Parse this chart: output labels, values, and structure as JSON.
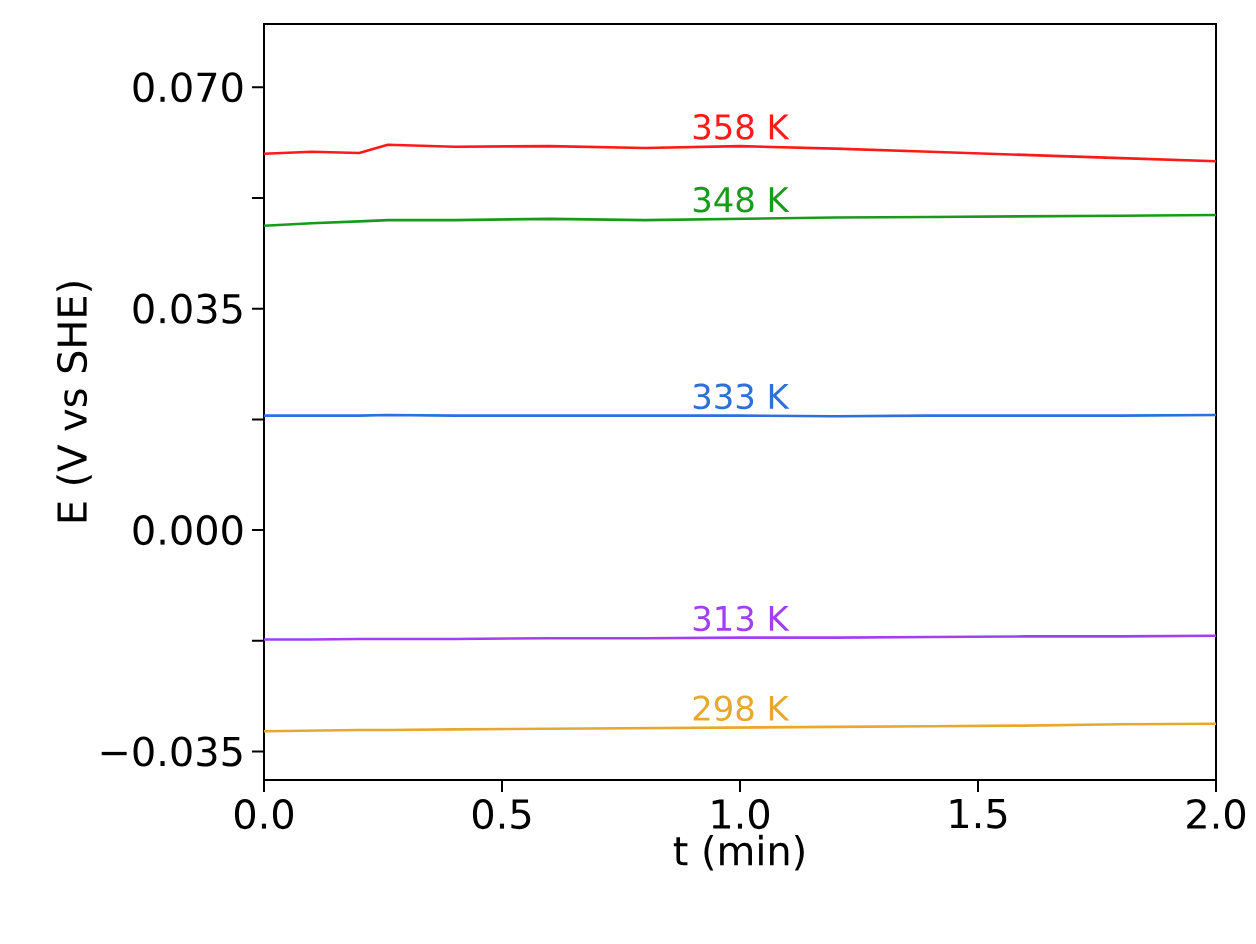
{
  "chart_data": {
    "type": "line",
    "xlabel": "t (min)",
    "ylabel": "E (V vs SHE)",
    "xlim": [
      0,
      2
    ],
    "ylim": [
      -0.0395,
      0.08
    ],
    "xticks": [
      {
        "value": 0,
        "label": "0.0"
      },
      {
        "value": 0.5,
        "label": "0.5"
      },
      {
        "value": 1,
        "label": "1.0"
      },
      {
        "value": 1.5,
        "label": "1.5"
      },
      {
        "value": 2,
        "label": "2.0"
      }
    ],
    "yticks": [
      {
        "value": -0.035,
        "label": "−0.035"
      },
      {
        "value": -0.0175,
        "label": null
      },
      {
        "value": 0,
        "label": "0.000"
      },
      {
        "value": 0.0175,
        "label": null
      },
      {
        "value": 0.035,
        "label": "0.035"
      },
      {
        "value": 0.0525,
        "label": null
      },
      {
        "value": 0.07,
        "label": "0.070"
      }
    ],
    "grid": false,
    "marker": "none",
    "line_style": "solid",
    "x": [
      0,
      0.1,
      0.2,
      0.26,
      0.4,
      0.6,
      0.8,
      1.0,
      1.2,
      1.4,
      1.6,
      1.8,
      2.0
    ],
    "series": [
      {
        "name": "358 K",
        "color": "#ff1a1a",
        "values": [
          0.0595,
          0.0598,
          0.0596,
          0.0609,
          0.0606,
          0.0607,
          0.0604,
          0.0607,
          0.0603,
          0.0598,
          0.0593,
          0.0588,
          0.0583
        ]
      },
      {
        "name": "348 K",
        "color": "#1a9a1a",
        "values": [
          0.0481,
          0.0485,
          0.0488,
          0.049,
          0.049,
          0.0492,
          0.049,
          0.0492,
          0.0494,
          0.0495,
          0.0496,
          0.0497,
          0.0498
        ]
      },
      {
        "name": "333 K",
        "color": "#2e6fd8",
        "values": [
          0.0181,
          0.0181,
          0.0181,
          0.0182,
          0.0181,
          0.0181,
          0.0181,
          0.0181,
          0.018,
          0.0181,
          0.0181,
          0.0181,
          0.0182
        ]
      },
      {
        "name": "313 K",
        "color": "#a040f0",
        "values": [
          -0.0173,
          -0.0173,
          -0.0172,
          -0.0172,
          -0.0172,
          -0.0171,
          -0.0171,
          -0.017,
          -0.017,
          -0.0169,
          -0.0168,
          -0.0168,
          -0.0167
        ]
      },
      {
        "name": "298 K",
        "color": "#e8a830",
        "values": [
          -0.0318,
          -0.0317,
          -0.0316,
          -0.0316,
          -0.0315,
          -0.0314,
          -0.0313,
          -0.0312,
          -0.0311,
          -0.031,
          -0.0309,
          -0.0307,
          -0.0306
        ]
      }
    ]
  }
}
